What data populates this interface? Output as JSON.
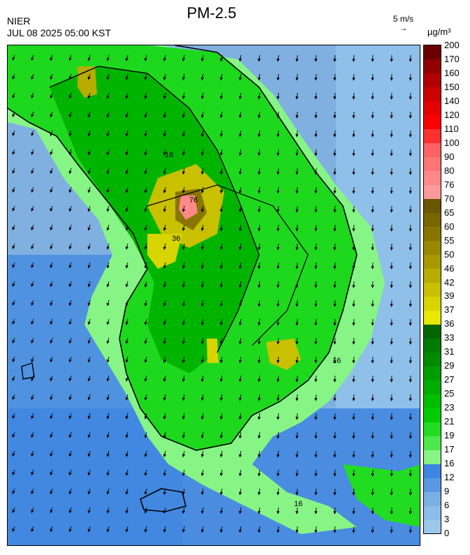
{
  "title": "PM-2.5",
  "source": "NIER",
  "timestamp": "JUL 08 2025 05:00 KST",
  "wind_scale_label": "5 m/s",
  "unit": "µg/m³",
  "contour_labels": [
    "16",
    "36",
    "76"
  ],
  "legend": {
    "ticks": [
      "0",
      "3",
      "6",
      "9",
      "12",
      "16",
      "17",
      "19",
      "21",
      "23",
      "25",
      "27",
      "29",
      "31",
      "33",
      "36",
      "37",
      "39",
      "42",
      "46",
      "50",
      "55",
      "60",
      "65",
      "70",
      "76",
      "80",
      "90",
      "100",
      "110",
      "120",
      "140",
      "150",
      "160",
      "170",
      "200"
    ],
    "colors": [
      "#9cc9eb",
      "#8cbde8",
      "#7ab0e4",
      "#5a98e2",
      "#3d85e0",
      "#86f586",
      "#4ce84c",
      "#22dc22",
      "#00cc00",
      "#00be00",
      "#00ad00",
      "#009d00",
      "#008b00",
      "#007a00",
      "#006600",
      "#e8e800",
      "#d8d400",
      "#c8c000",
      "#b8ac00",
      "#a89a00",
      "#988800",
      "#887600",
      "#786600",
      "#685600",
      "#ff9a9a",
      "#ff8888",
      "#ff7575",
      "#ff6262",
      "#ff3030",
      "#ff0000",
      "#e40000",
      "#cc0000",
      "#b00000",
      "#900000",
      "#6a0000"
    ],
    "colors_note_ignore": ""
  }
}
